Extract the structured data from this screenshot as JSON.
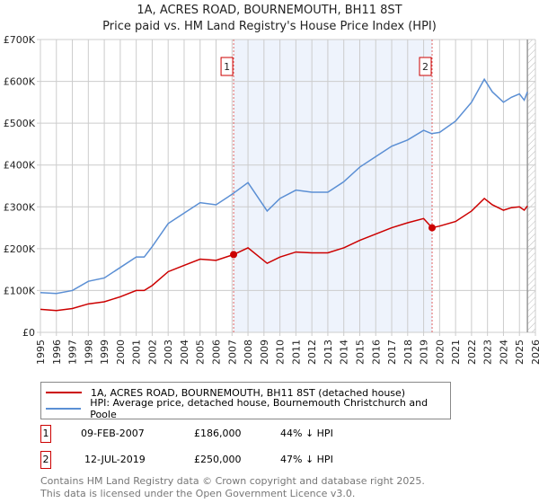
{
  "chart_data": {
    "type": "line",
    "title": "1A, ACRES ROAD, BOURNEMOUTH, BH11 8ST",
    "subtitle": "Price paid vs. HM Land Registry's House Price Index (HPI)",
    "xlabel": "",
    "ylabel": "",
    "xlim": [
      1995,
      2026
    ],
    "ylim": [
      0,
      700000
    ],
    "y_ticks": [
      "£0",
      "£100K",
      "£200K",
      "£300K",
      "£400K",
      "£500K",
      "£600K",
      "£700K"
    ],
    "x_ticks": [
      "1995",
      "1996",
      "1997",
      "1998",
      "1999",
      "2000",
      "2001",
      "2002",
      "2003",
      "2004",
      "2005",
      "2006",
      "2007",
      "2008",
      "2009",
      "2010",
      "2011",
      "2012",
      "2013",
      "2014",
      "2015",
      "2016",
      "2017",
      "2018",
      "2019",
      "2020",
      "2021",
      "2022",
      "2023",
      "2024",
      "2025",
      "2026"
    ],
    "grid": true,
    "legend_placement": "bottom",
    "series": [
      {
        "name": "1A, ACRES ROAD, BOURNEMOUTH, BH11 8ST (detached house)",
        "color": "#cc0000",
        "x": [
          1995,
          1996,
          1997,
          1998,
          1999,
          2000,
          2001,
          2001.5,
          2002,
          2003,
          2004,
          2005,
          2006,
          2007.1,
          2008,
          2009.2,
          2010,
          2011,
          2012,
          2013,
          2014,
          2015,
          2016,
          2017,
          2018,
          2019,
          2019.53,
          2020,
          2021,
          2022,
          2022.8,
          2023.3,
          2024,
          2024.5,
          2025,
          2025.3,
          2025.5
        ],
        "y": [
          55000,
          52000,
          57000,
          68000,
          73000,
          85000,
          100000,
          100000,
          112000,
          145000,
          160000,
          175000,
          172000,
          186000,
          202000,
          165000,
          180000,
          192000,
          190000,
          190000,
          202000,
          220000,
          235000,
          250000,
          262000,
          272000,
          250000,
          254000,
          265000,
          290000,
          320000,
          305000,
          292000,
          298000,
          300000,
          292000,
          302000
        ]
      },
      {
        "name": "HPI: Average price, detached house, Bournemouth Christchurch and Poole",
        "color": "#5b8fd4",
        "x": [
          1995,
          1996,
          1997,
          1998,
          1999,
          2000,
          2001,
          2001.5,
          2002,
          2003,
          2004,
          2005,
          2006,
          2007,
          2008,
          2009.2,
          2010,
          2011,
          2012,
          2013,
          2014,
          2015,
          2016,
          2017,
          2018,
          2019,
          2019.5,
          2020,
          2021,
          2022,
          2022.8,
          2023.3,
          2024,
          2024.5,
          2025,
          2025.3,
          2025.5
        ],
        "y": [
          95000,
          93000,
          100000,
          122000,
          130000,
          155000,
          180000,
          180000,
          205000,
          260000,
          285000,
          310000,
          305000,
          330000,
          358000,
          290000,
          320000,
          340000,
          335000,
          335000,
          360000,
          395000,
          420000,
          445000,
          460000,
          483000,
          475000,
          478000,
          505000,
          550000,
          605000,
          575000,
          550000,
          562000,
          570000,
          555000,
          575000
        ]
      }
    ],
    "annotations": [
      {
        "label": "1",
        "x": 2007.1,
        "y": 186000,
        "date": "09-FEB-2007",
        "price": "£186,000",
        "hpi": "44% ↓ HPI"
      },
      {
        "label": "2",
        "x": 2019.53,
        "y": 250000,
        "date": "12-JUL-2019",
        "price": "£250,000",
        "hpi": "47% ↓ HPI"
      }
    ],
    "shaded_range": [
      2007.1,
      2019.53
    ],
    "forecast_from": 2025.5
  },
  "footer": [
    "Contains HM Land Registry data © Crown copyright and database right 2025.",
    "This data is licensed under the Open Government Licence v3.0."
  ]
}
